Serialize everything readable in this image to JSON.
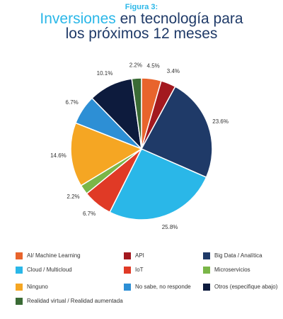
{
  "chart_data": {
    "type": "pie",
    "figure_label": "Figura 3:",
    "title_highlight": "Inversiones",
    "title": "en tecnología para los próximos 12 meses",
    "categories": [
      "AI/ Machine Learning",
      "API",
      "Big Data / Analítica",
      "Cloud / Multicloud",
      "IoT",
      "Microservicios",
      "Ninguno",
      "No sabe, no responde",
      "Otros (especifique abajo)",
      "Realidad virtual / Realidad aumentada"
    ],
    "values": [
      4.5,
      3.4,
      23.6,
      25.8,
      6.7,
      2.2,
      14.6,
      6.7,
      10.1,
      2.2
    ],
    "value_labels": [
      "4.5%",
      "3.4%",
      "23.6%",
      "25.8%",
      "6.7%",
      "2.2%",
      "14.6%",
      "6.7%",
      "10.1%",
      "2.2%"
    ],
    "colors": [
      "#e8642c",
      "#a3191f",
      "#1f3a68",
      "#2ab7e8",
      "#e03a26",
      "#7ab648",
      "#f5a623",
      "#2d8fd5",
      "#0d1b3d",
      "#3a6b35"
    ],
    "legend_position": "bottom"
  }
}
